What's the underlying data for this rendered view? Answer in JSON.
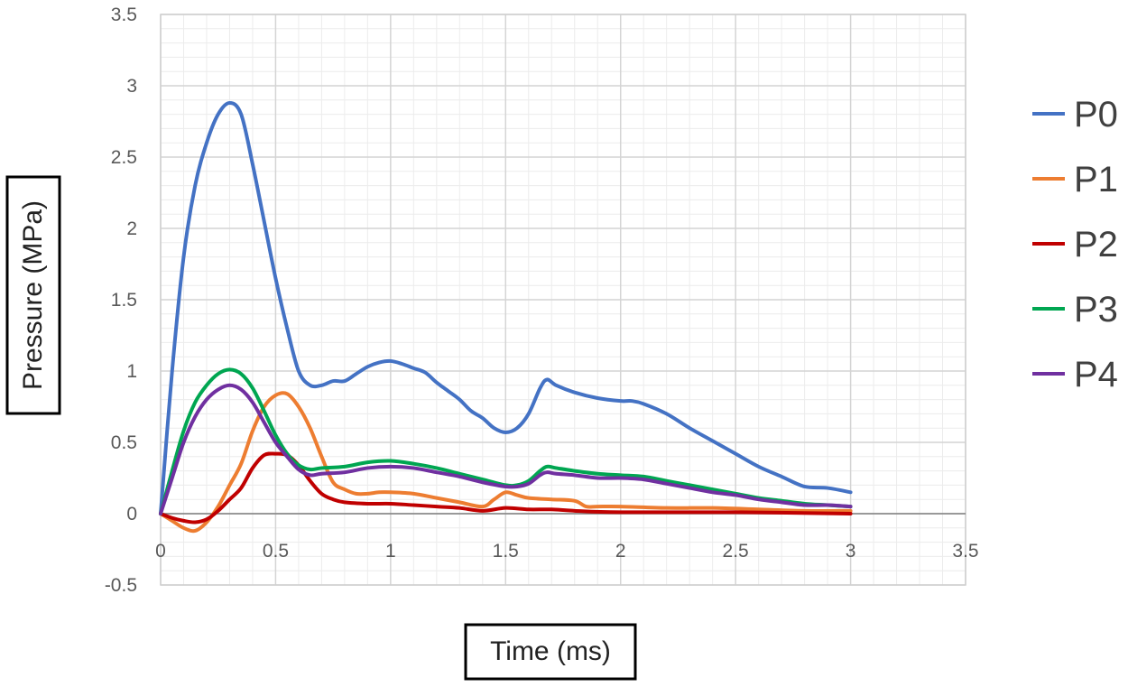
{
  "chart_data": {
    "type": "line",
    "xlabel": "Time (ms)",
    "ylabel": "Pressure (MPa)",
    "xlim": [
      0,
      3.5
    ],
    "ylim": [
      -0.5,
      3.5
    ],
    "x_ticks": [
      "0",
      "0.5",
      "1",
      "1.5",
      "2",
      "2.5",
      "3",
      "3.5"
    ],
    "y_ticks": [
      "-0.5",
      "0",
      "0.5",
      "1",
      "1.5",
      "2",
      "2.5",
      "3",
      "3.5"
    ],
    "grid": true,
    "legend_position": "right",
    "series": [
      {
        "name": "P0",
        "color": "#4472C4",
        "points": [
          [
            0,
            0
          ],
          [
            0.05,
            1.0
          ],
          [
            0.1,
            1.8
          ],
          [
            0.15,
            2.3
          ],
          [
            0.2,
            2.6
          ],
          [
            0.25,
            2.8
          ],
          [
            0.3,
            2.88
          ],
          [
            0.35,
            2.8
          ],
          [
            0.4,
            2.45
          ],
          [
            0.45,
            2.05
          ],
          [
            0.5,
            1.65
          ],
          [
            0.55,
            1.3
          ],
          [
            0.6,
            1.0
          ],
          [
            0.65,
            0.9
          ],
          [
            0.7,
            0.9
          ],
          [
            0.75,
            0.93
          ],
          [
            0.8,
            0.93
          ],
          [
            0.85,
            0.98
          ],
          [
            0.9,
            1.03
          ],
          [
            0.95,
            1.06
          ],
          [
            1.0,
            1.07
          ],
          [
            1.05,
            1.05
          ],
          [
            1.1,
            1.02
          ],
          [
            1.15,
            0.99
          ],
          [
            1.2,
            0.92
          ],
          [
            1.25,
            0.86
          ],
          [
            1.3,
            0.8
          ],
          [
            1.35,
            0.72
          ],
          [
            1.4,
            0.67
          ],
          [
            1.45,
            0.6
          ],
          [
            1.5,
            0.57
          ],
          [
            1.55,
            0.6
          ],
          [
            1.6,
            0.7
          ],
          [
            1.65,
            0.88
          ],
          [
            1.68,
            0.94
          ],
          [
            1.72,
            0.9
          ],
          [
            1.8,
            0.85
          ],
          [
            1.9,
            0.81
          ],
          [
            2.0,
            0.79
          ],
          [
            2.05,
            0.79
          ],
          [
            2.1,
            0.77
          ],
          [
            2.2,
            0.7
          ],
          [
            2.3,
            0.6
          ],
          [
            2.4,
            0.51
          ],
          [
            2.5,
            0.42
          ],
          [
            2.6,
            0.33
          ],
          [
            2.7,
            0.26
          ],
          [
            2.8,
            0.19
          ],
          [
            2.9,
            0.18
          ],
          [
            3.0,
            0.15
          ]
        ]
      },
      {
        "name": "P1",
        "color": "#ED7D31",
        "points": [
          [
            0,
            0
          ],
          [
            0.05,
            -0.05
          ],
          [
            0.1,
            -0.1
          ],
          [
            0.15,
            -0.12
          ],
          [
            0.2,
            -0.06
          ],
          [
            0.25,
            0.05
          ],
          [
            0.3,
            0.2
          ],
          [
            0.35,
            0.35
          ],
          [
            0.4,
            0.58
          ],
          [
            0.45,
            0.75
          ],
          [
            0.5,
            0.83
          ],
          [
            0.55,
            0.84
          ],
          [
            0.6,
            0.75
          ],
          [
            0.65,
            0.6
          ],
          [
            0.7,
            0.4
          ],
          [
            0.75,
            0.22
          ],
          [
            0.8,
            0.17
          ],
          [
            0.85,
            0.14
          ],
          [
            0.9,
            0.14
          ],
          [
            0.95,
            0.15
          ],
          [
            1.0,
            0.15
          ],
          [
            1.1,
            0.14
          ],
          [
            1.2,
            0.11
          ],
          [
            1.3,
            0.08
          ],
          [
            1.4,
            0.05
          ],
          [
            1.45,
            0.1
          ],
          [
            1.5,
            0.15
          ],
          [
            1.55,
            0.13
          ],
          [
            1.6,
            0.11
          ],
          [
            1.7,
            0.1
          ],
          [
            1.8,
            0.09
          ],
          [
            1.85,
            0.05
          ],
          [
            1.9,
            0.05
          ],
          [
            2.0,
            0.05
          ],
          [
            2.2,
            0.04
          ],
          [
            2.4,
            0.04
          ],
          [
            2.6,
            0.03
          ],
          [
            2.8,
            0.02
          ],
          [
            3.0,
            0.02
          ]
        ]
      },
      {
        "name": "P2",
        "color": "#C00000",
        "points": [
          [
            0,
            0
          ],
          [
            0.05,
            -0.03
          ],
          [
            0.1,
            -0.05
          ],
          [
            0.15,
            -0.06
          ],
          [
            0.2,
            -0.04
          ],
          [
            0.25,
            0.02
          ],
          [
            0.3,
            0.1
          ],
          [
            0.35,
            0.18
          ],
          [
            0.4,
            0.32
          ],
          [
            0.45,
            0.41
          ],
          [
            0.5,
            0.42
          ],
          [
            0.55,
            0.41
          ],
          [
            0.6,
            0.34
          ],
          [
            0.65,
            0.23
          ],
          [
            0.7,
            0.14
          ],
          [
            0.75,
            0.1
          ],
          [
            0.8,
            0.08
          ],
          [
            0.9,
            0.07
          ],
          [
            1.0,
            0.07
          ],
          [
            1.1,
            0.06
          ],
          [
            1.2,
            0.05
          ],
          [
            1.3,
            0.04
          ],
          [
            1.4,
            0.02
          ],
          [
            1.5,
            0.04
          ],
          [
            1.6,
            0.03
          ],
          [
            1.7,
            0.03
          ],
          [
            1.8,
            0.02
          ],
          [
            2.0,
            0.01
          ],
          [
            2.5,
            0.01
          ],
          [
            3.0,
            0.0
          ]
        ]
      },
      {
        "name": "P3",
        "color": "#00A651",
        "points": [
          [
            0,
            0
          ],
          [
            0.05,
            0.3
          ],
          [
            0.1,
            0.58
          ],
          [
            0.15,
            0.78
          ],
          [
            0.2,
            0.9
          ],
          [
            0.25,
            0.98
          ],
          [
            0.3,
            1.01
          ],
          [
            0.35,
            0.98
          ],
          [
            0.4,
            0.88
          ],
          [
            0.45,
            0.72
          ],
          [
            0.5,
            0.55
          ],
          [
            0.55,
            0.42
          ],
          [
            0.6,
            0.34
          ],
          [
            0.65,
            0.31
          ],
          [
            0.7,
            0.32
          ],
          [
            0.8,
            0.33
          ],
          [
            0.9,
            0.36
          ],
          [
            1.0,
            0.37
          ],
          [
            1.1,
            0.35
          ],
          [
            1.2,
            0.32
          ],
          [
            1.3,
            0.28
          ],
          [
            1.4,
            0.24
          ],
          [
            1.5,
            0.2
          ],
          [
            1.55,
            0.2
          ],
          [
            1.6,
            0.23
          ],
          [
            1.65,
            0.3
          ],
          [
            1.68,
            0.33
          ],
          [
            1.72,
            0.32
          ],
          [
            1.8,
            0.3
          ],
          [
            1.9,
            0.28
          ],
          [
            2.0,
            0.27
          ],
          [
            2.1,
            0.26
          ],
          [
            2.2,
            0.23
          ],
          [
            2.3,
            0.2
          ],
          [
            2.4,
            0.17
          ],
          [
            2.5,
            0.14
          ],
          [
            2.6,
            0.11
          ],
          [
            2.7,
            0.09
          ],
          [
            2.8,
            0.07
          ],
          [
            2.9,
            0.06
          ],
          [
            3.0,
            0.05
          ]
        ]
      },
      {
        "name": "P4",
        "color": "#7030A0",
        "points": [
          [
            0,
            0
          ],
          [
            0.05,
            0.25
          ],
          [
            0.1,
            0.5
          ],
          [
            0.15,
            0.68
          ],
          [
            0.2,
            0.8
          ],
          [
            0.25,
            0.87
          ],
          [
            0.3,
            0.9
          ],
          [
            0.35,
            0.87
          ],
          [
            0.4,
            0.78
          ],
          [
            0.45,
            0.64
          ],
          [
            0.5,
            0.5
          ],
          [
            0.55,
            0.4
          ],
          [
            0.6,
            0.31
          ],
          [
            0.65,
            0.27
          ],
          [
            0.7,
            0.28
          ],
          [
            0.8,
            0.29
          ],
          [
            0.9,
            0.32
          ],
          [
            1.0,
            0.33
          ],
          [
            1.1,
            0.32
          ],
          [
            1.2,
            0.29
          ],
          [
            1.3,
            0.26
          ],
          [
            1.4,
            0.22
          ],
          [
            1.5,
            0.19
          ],
          [
            1.55,
            0.19
          ],
          [
            1.6,
            0.21
          ],
          [
            1.65,
            0.27
          ],
          [
            1.68,
            0.29
          ],
          [
            1.72,
            0.28
          ],
          [
            1.8,
            0.27
          ],
          [
            1.9,
            0.25
          ],
          [
            2.0,
            0.25
          ],
          [
            2.1,
            0.24
          ],
          [
            2.2,
            0.21
          ],
          [
            2.3,
            0.18
          ],
          [
            2.4,
            0.15
          ],
          [
            2.5,
            0.13
          ],
          [
            2.6,
            0.1
          ],
          [
            2.7,
            0.08
          ],
          [
            2.8,
            0.06
          ],
          [
            2.9,
            0.06
          ],
          [
            3.0,
            0.05
          ]
        ]
      }
    ]
  }
}
